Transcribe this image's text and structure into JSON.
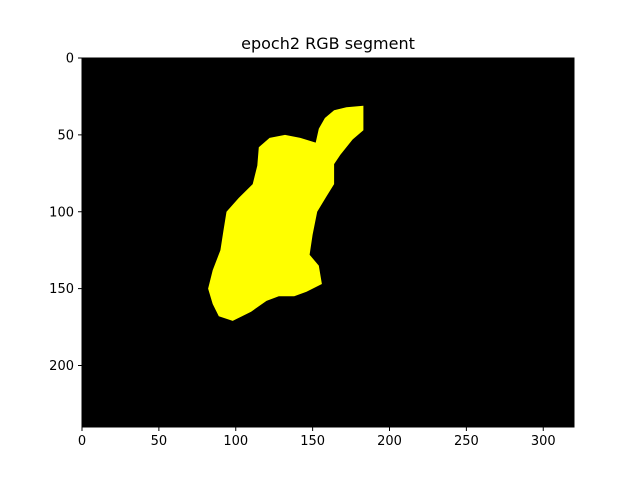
{
  "chart_data": {
    "type": "image",
    "title": "epoch2 RGB segment",
    "xlabel": "",
    "ylabel": "",
    "image_size": [
      320,
      240
    ],
    "xlim": [
      0,
      320
    ],
    "ylim": [
      240,
      0
    ],
    "x_ticks": [
      0,
      50,
      100,
      150,
      200,
      250,
      300
    ],
    "y_ticks": [
      0,
      50,
      100,
      150,
      200
    ],
    "background_color": "#000000",
    "segment_color": "#ffff00",
    "segment_outline": [
      [
        183,
        31
      ],
      [
        183,
        47
      ],
      [
        176,
        53
      ],
      [
        168,
        63
      ],
      [
        164,
        69
      ],
      [
        164,
        82
      ],
      [
        159,
        90
      ],
      [
        153,
        100
      ],
      [
        150,
        115
      ],
      [
        148,
        128
      ],
      [
        154,
        135
      ],
      [
        156,
        147
      ],
      [
        146,
        152
      ],
      [
        138,
        155
      ],
      [
        128,
        155
      ],
      [
        120,
        158
      ],
      [
        110,
        165
      ],
      [
        98,
        171
      ],
      [
        89,
        168
      ],
      [
        85,
        160
      ],
      [
        82,
        150
      ],
      [
        85,
        138
      ],
      [
        90,
        125
      ],
      [
        92,
        112
      ],
      [
        94,
        100
      ],
      [
        102,
        91
      ],
      [
        111,
        82
      ],
      [
        114,
        70
      ],
      [
        115,
        58
      ],
      [
        122,
        52
      ],
      [
        132,
        50
      ],
      [
        142,
        52
      ],
      [
        152,
        55
      ],
      [
        154,
        46
      ],
      [
        158,
        39
      ],
      [
        164,
        34
      ],
      [
        172,
        32
      ]
    ]
  }
}
